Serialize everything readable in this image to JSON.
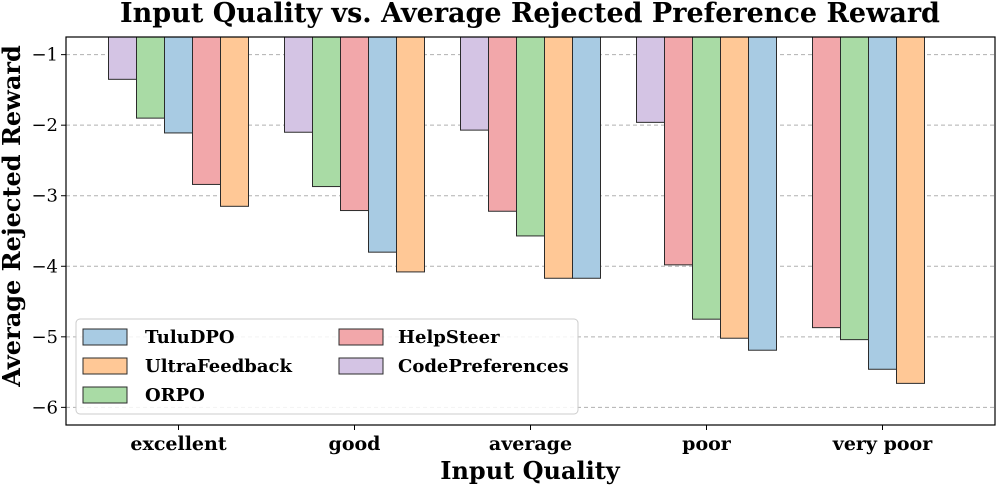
{
  "chart_data": {
    "type": "bar",
    "title": "Input Quality vs. Average Rejected Preference Reward",
    "xlabel": "Input Quality",
    "ylabel": "Average Rejected Reward",
    "ylim": [
      -6.25,
      -0.75
    ],
    "yticks": [
      -1,
      -2,
      -3,
      -4,
      -5,
      -6
    ],
    "ytick_labels": [
      "−1",
      "−2",
      "−3",
      "−4",
      "−5",
      "−6"
    ],
    "grid": true,
    "legend_position": "lower-left",
    "categories": [
      "excellent",
      "good",
      "average",
      "poor",
      "very poor"
    ],
    "series": [
      {
        "name": "TuluDPO",
        "color": "#a8cbe3"
      },
      {
        "name": "UltraFeedback",
        "color": "#ffc896"
      },
      {
        "name": "ORPO",
        "color": "#a9dba5"
      },
      {
        "name": "HelpSteer",
        "color": "#f2a7aa"
      },
      {
        "name": "CodePreferences",
        "color": "#d4c4e4"
      }
    ],
    "groups": [
      {
        "category": "excellent",
        "bars": [
          {
            "series": "CodePreferences",
            "value": -1.35
          },
          {
            "series": "ORPO",
            "value": -1.9
          },
          {
            "series": "TuluDPO",
            "value": -2.11
          },
          {
            "series": "HelpSteer",
            "value": -2.84
          },
          {
            "series": "UltraFeedback",
            "value": -3.15
          }
        ]
      },
      {
        "category": "good",
        "bars": [
          {
            "series": "CodePreferences",
            "value": -2.1
          },
          {
            "series": "ORPO",
            "value": -2.87
          },
          {
            "series": "HelpSteer",
            "value": -3.21
          },
          {
            "series": "TuluDPO",
            "value": -3.8
          },
          {
            "series": "UltraFeedback",
            "value": -4.08
          }
        ]
      },
      {
        "category": "average",
        "bars": [
          {
            "series": "CodePreferences",
            "value": -2.07
          },
          {
            "series": "HelpSteer",
            "value": -3.22
          },
          {
            "series": "ORPO",
            "value": -3.57
          },
          {
            "series": "UltraFeedback",
            "value": -4.17
          },
          {
            "series": "TuluDPO",
            "value": -4.17
          }
        ]
      },
      {
        "category": "poor",
        "bars": [
          {
            "series": "CodePreferences",
            "value": -1.96
          },
          {
            "series": "HelpSteer",
            "value": -3.98
          },
          {
            "series": "ORPO",
            "value": -4.75
          },
          {
            "series": "UltraFeedback",
            "value": -5.02
          },
          {
            "series": "TuluDPO",
            "value": -5.19
          }
        ]
      },
      {
        "category": "very poor",
        "bars": [
          {
            "series": "HelpSteer",
            "value": -4.87
          },
          {
            "series": "ORPO",
            "value": -5.04
          },
          {
            "series": "TuluDPO",
            "value": -5.46
          },
          {
            "series": "UltraFeedback",
            "value": -5.66
          }
        ]
      }
    ]
  }
}
